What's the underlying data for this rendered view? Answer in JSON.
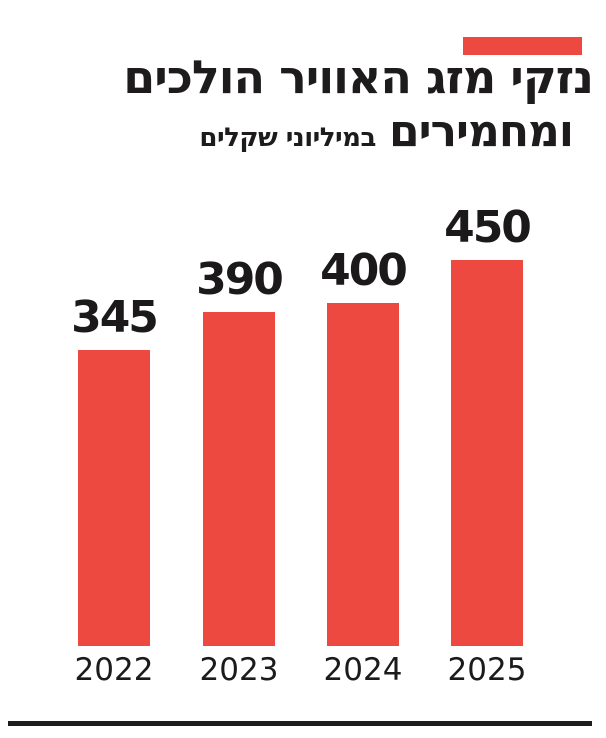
{
  "page": {
    "background": "#ffffff",
    "text_color": "#1d1b1b"
  },
  "accent_bar": {
    "color": "#ee4941"
  },
  "title": {
    "line1": "נזקי מזג האוויר הולכים",
    "line2": "ומחמירים",
    "unit_label": "במיליוני שקלים"
  },
  "chart_data": {
    "type": "bar",
    "title": "נזקי מזג האוויר הולכים ומחמירים",
    "subtitle": "במיליוני שקלים",
    "categories": [
      "2022",
      "2023",
      "2024",
      "2025"
    ],
    "values": [
      345,
      390,
      400,
      450
    ],
    "bar_color": "#ee4941",
    "value_label_color": "#1b1919",
    "ylim": [
      0,
      470
    ],
    "grid": false,
    "legend_position": "none",
    "value_labels_shown": true,
    "orientation": "vertical"
  },
  "footer": {
    "divider_color": "#1e1c1c"
  }
}
